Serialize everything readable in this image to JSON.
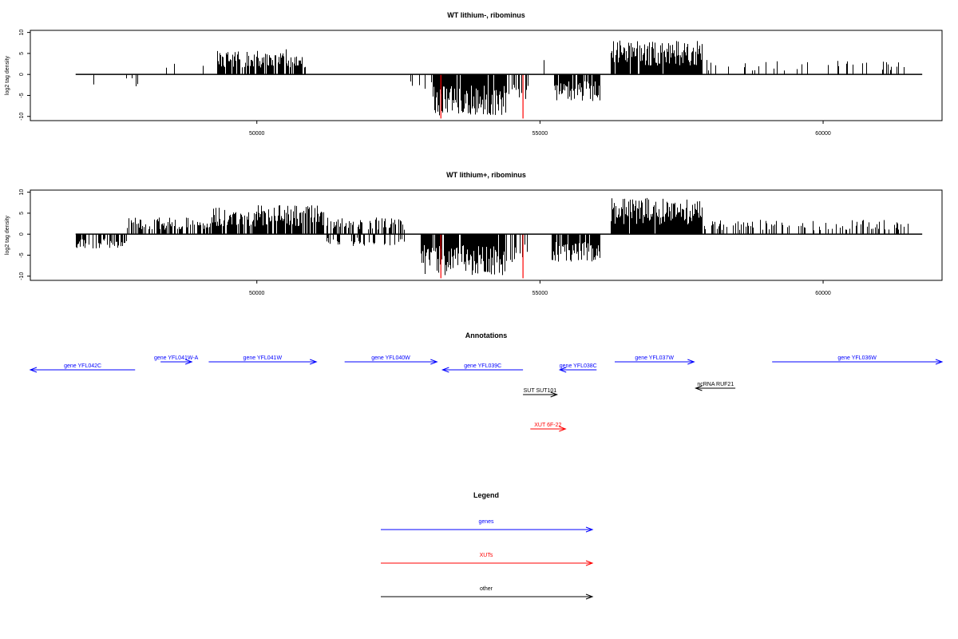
{
  "chart_data": [
    {
      "type": "bar",
      "title": "WT lithium-, ribominus",
      "ylabel": "log2 tag density",
      "xlabel": "",
      "xlim": [
        46000,
        62100
      ],
      "ylim": [
        -11,
        10.5
      ],
      "xticks": [
        50000,
        55000,
        60000
      ],
      "xtick_labels": [
        "50000",
        "55000",
        "60000"
      ],
      "yticks": [
        -10,
        -5,
        0,
        5,
        10
      ],
      "ytick_labels": [
        "-10",
        "-5",
        "0",
        "5",
        "10"
      ],
      "grid": false,
      "baseline": {
        "x": [
          46800,
          61750
        ],
        "y": 0
      },
      "segments": [
        {
          "x": [
            46950,
            47900
          ],
          "y": -2.5,
          "side": "minus",
          "density": 0.04,
          "seed": 11
        },
        {
          "x": [
            48100,
            49100
          ],
          "y": 3,
          "side": "plus",
          "density": 0.05,
          "seed": 12
        },
        {
          "x": [
            49300,
            50100
          ],
          "y": 5,
          "side": "plus",
          "density": 0.8,
          "seed": 13
        },
        {
          "x": [
            50100,
            50850
          ],
          "y": 5.5,
          "side": "plus",
          "density": 0.75,
          "seed": 14
        },
        {
          "x": [
            51300,
            51500
          ],
          "y": -2.5,
          "side": "minus",
          "density": 0.05,
          "seed": 15
        },
        {
          "x": [
            52100,
            52250
          ],
          "y": -3,
          "side": "minus",
          "density": 0.05,
          "seed": 16
        },
        {
          "x": [
            52700,
            53100
          ],
          "y": -3,
          "side": "minus",
          "density": 0.15,
          "seed": 17
        },
        {
          "x": [
            53100,
            54400
          ],
          "y": -8.5,
          "side": "minus",
          "density": 0.95,
          "seed": 18
        },
        {
          "x": [
            54400,
            54800
          ],
          "y": -6,
          "side": "minus",
          "density": 0.5,
          "seed": 19
        },
        {
          "x": [
            55000,
            55100
          ],
          "y": 3,
          "side": "plus",
          "density": 0.3,
          "seed": 20
        },
        {
          "x": [
            55250,
            56050
          ],
          "y": -5.5,
          "side": "minus",
          "density": 0.9,
          "seed": 21
        },
        {
          "x": [
            56250,
            57850
          ],
          "y": 7,
          "side": "plus",
          "density": 0.95,
          "seed": 22
        },
        {
          "x": [
            57850,
            61500
          ],
          "y": 3,
          "side": "plus",
          "density": 0.14,
          "seed": 23
        }
      ],
      "highlights": [
        {
          "x": 53250,
          "y": -10.5
        },
        {
          "x": 54700,
          "y": -10.5
        }
      ],
      "bar_color": "#000000",
      "highlight_color": "#ff0000"
    },
    {
      "type": "bar",
      "title": "WT lithium+, ribominus",
      "ylabel": "log2 tag density",
      "xlabel": "",
      "xlim": [
        46000,
        62100
      ],
      "ylim": [
        -11,
        10.5
      ],
      "xticks": [
        50000,
        55000,
        60000
      ],
      "xtick_labels": [
        "50000",
        "55000",
        "60000"
      ],
      "yticks": [
        -10,
        -5,
        0,
        5,
        10
      ],
      "ytick_labels": [
        "-10",
        "-5",
        "0",
        "5",
        "10"
      ],
      "grid": false,
      "baseline": {
        "x": [
          46800,
          61750
        ],
        "y": 0
      },
      "segments": [
        {
          "x": [
            46800,
            47700
          ],
          "y": -3,
          "side": "minus",
          "density": 0.6,
          "seed": 31
        },
        {
          "x": [
            47700,
            49200
          ],
          "y": 3.5,
          "side": "plus",
          "density": 0.55,
          "seed": 32
        },
        {
          "x": [
            49200,
            51200
          ],
          "y": 6,
          "side": "plus",
          "density": 0.85,
          "seed": 33
        },
        {
          "x": [
            51200,
            52600
          ],
          "y": 3.5,
          "side": "plus",
          "density": 0.55,
          "seed": 34
        },
        {
          "x": [
            51200,
            52600
          ],
          "y": -2.5,
          "side": "minus",
          "density": 0.3,
          "seed": 35
        },
        {
          "x": [
            52900,
            54400
          ],
          "y": -8.5,
          "side": "minus",
          "density": 0.95,
          "seed": 36
        },
        {
          "x": [
            54400,
            54800
          ],
          "y": -6,
          "side": "minus",
          "density": 0.5,
          "seed": 37
        },
        {
          "x": [
            55200,
            56050
          ],
          "y": -6,
          "side": "minus",
          "density": 0.9,
          "seed": 38
        },
        {
          "x": [
            56250,
            57850
          ],
          "y": 7.5,
          "side": "plus",
          "density": 0.95,
          "seed": 39
        },
        {
          "x": [
            57900,
            61500
          ],
          "y": 3,
          "side": "plus",
          "density": 0.3,
          "seed": 40
        }
      ],
      "highlights": [
        {
          "x": 53250,
          "y": -10.5
        },
        {
          "x": 54700,
          "y": -10.5
        }
      ],
      "bar_color": "#000000",
      "highlight_color": "#ff0000"
    }
  ],
  "annotations": {
    "title": "Annotations",
    "colors": {
      "gene": "#0000ff",
      "xut": "#ff0000",
      "other": "#000000"
    },
    "items": [
      {
        "label": "gene YFL042C",
        "kind": "gene",
        "dir": "left",
        "x0": 46000,
        "x1": 47850,
        "row": 1
      },
      {
        "label": "gene YFL041W-A",
        "kind": "gene",
        "dir": "right",
        "x0": 48300,
        "x1": 48850,
        "row": 0
      },
      {
        "label": "gene YFL041W",
        "kind": "gene",
        "dir": "right",
        "x0": 49150,
        "x1": 51050,
        "row": 0
      },
      {
        "label": "gene YFL040W",
        "kind": "gene",
        "dir": "right",
        "x0": 51550,
        "x1": 53180,
        "row": 0
      },
      {
        "label": "gene YFL039C",
        "kind": "gene",
        "dir": "left",
        "x0": 53280,
        "x1": 54700,
        "row": 1
      },
      {
        "label": "gene YFL038C",
        "kind": "gene",
        "dir": "left",
        "x0": 55350,
        "x1": 56000,
        "row": 1
      },
      {
        "label": "gene YFL037W",
        "kind": "gene",
        "dir": "right",
        "x0": 56320,
        "x1": 57720,
        "row": 0
      },
      {
        "label": "gene YFL036W",
        "kind": "gene",
        "dir": "right",
        "x0": 59100,
        "x1": 62100,
        "row": 0
      },
      {
        "label": "ncRNA RUF21",
        "kind": "other",
        "dir": "left",
        "x0": 57750,
        "x1": 58450,
        "row": 2
      },
      {
        "label": "SUT SUT101",
        "kind": "other",
        "dir": "right",
        "x0": 54700,
        "x1": 55300,
        "row": 3
      },
      {
        "label": "XUT 6F-22",
        "kind": "xut",
        "dir": "right",
        "x0": 54830,
        "x1": 55450,
        "row": 4
      }
    ]
  },
  "legend": {
    "title": "Legend",
    "items": [
      {
        "label": "genes",
        "color": "#0000ff"
      },
      {
        "label": "XUTs",
        "color": "#ff0000"
      },
      {
        "label": "other",
        "color": "#000000"
      }
    ]
  }
}
